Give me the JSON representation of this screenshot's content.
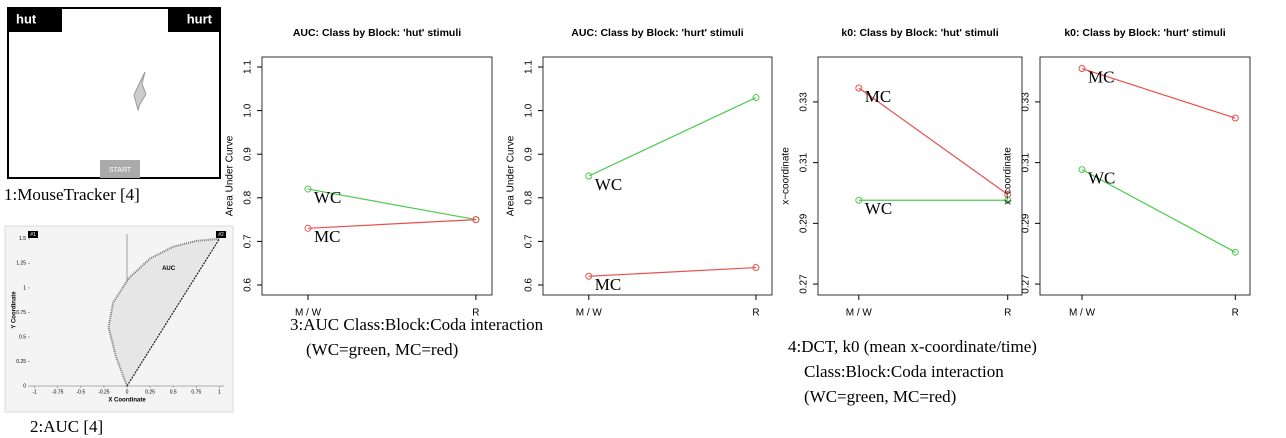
{
  "chart_data": [
    {
      "type": "line",
      "title": "AUC: Class by Block: 'hut' stimuli",
      "y_label": "Area Under Curve",
      "categories": [
        "M / W",
        "R"
      ],
      "series": [
        {
          "name": "WC",
          "color": "#4fc94f",
          "values": [
            0.82,
            0.75
          ]
        },
        {
          "name": "MC",
          "color": "#e8504f",
          "values": [
            0.73,
            0.75
          ]
        }
      ],
      "ylim": [
        0.577,
        1.123
      ],
      "yticks": [
        0.6,
        0.7,
        0.8,
        0.9,
        {
          "value": 1,
          "label": "1.0"
        },
        1.1
      ]
    },
    {
      "type": "line",
      "title": "AUC: Class by Block: 'hurt' stimuli",
      "y_label": "Area Under Curve",
      "categories": [
        "M / W",
        "R"
      ],
      "series": [
        {
          "name": "WC",
          "color": "#4fc94f",
          "values": [
            0.85,
            1.03
          ]
        },
        {
          "name": "MC",
          "color": "#e8504f",
          "values": [
            0.62,
            0.64
          ]
        }
      ],
      "ylim": [
        0.577,
        1.123
      ],
      "yticks": [
        0.6,
        0.7,
        0.8,
        0.9,
        {
          "value": 1,
          "label": "1.0"
        },
        1.1
      ]
    },
    {
      "type": "line",
      "title": "k0: Class by Block: 'hut' stimuli",
      "y_label": "x−coordinate",
      "categories": [
        "M / W",
        "R"
      ],
      "series": [
        {
          "name": "MC",
          "color": "#e8504f",
          "values": [
            0.3346,
            0.2995
          ]
        },
        {
          "name": "WC",
          "color": "#4fc94f",
          "values": [
            0.2976,
            0.2976
          ]
        }
      ],
      "ylim": [
        0.2664,
        0.3448
      ],
      "yticks": [
        0.27,
        0.29,
        0.31,
        0.33
      ]
    },
    {
      "type": "line",
      "title": "k0: Class by Block: 'hurt' stimuli",
      "y_label": "x−coordinate",
      "categories": [
        "M / W",
        "R"
      ],
      "series": [
        {
          "name": "MC",
          "color": "#e8504f",
          "values": [
            0.341,
            0.3247
          ]
        },
        {
          "name": "WC",
          "color": "#4fc94f",
          "values": [
            0.3077,
            0.2805
          ]
        }
      ],
      "ylim": [
        0.2664,
        0.3448
      ],
      "yticks": [
        0.27,
        0.29,
        0.31,
        0.33
      ]
    },
    {
      "type": "trajectory",
      "x_label": "X Coordinate",
      "y_label": "Y Coordinate",
      "annotation": "AUC",
      "start_label": "#1",
      "end_label": "#2",
      "x": [
        0,
        -0.12,
        -0.2,
        -0.15,
        0.02,
        0.25,
        0.5,
        0.75,
        1
      ],
      "y": [
        0,
        0.3,
        0.6,
        0.85,
        1.1,
        1.3,
        1.42,
        1.48,
        1.5
      ],
      "xlim": [
        -1.05,
        1.05
      ],
      "ylim": [
        0,
        1.55
      ],
      "xticks": [
        -1,
        -0.75,
        -0.5,
        -0.25,
        0,
        0.25,
        0.5,
        0.75,
        1
      ],
      "yticks": [
        0,
        0.25,
        0.5,
        0.75,
        1,
        1.25,
        1.5
      ]
    }
  ],
  "mousetracker": {
    "left_label": "hut",
    "right_label": "hurt",
    "button": "START"
  },
  "captions": [
    "1:MouseTracker [4]",
    "2:AUC [4]",
    "3:AUC Class:Block:Coda interaction",
    "(WC=green, MC=red)",
    "4:DCT, k0 (mean x-coordinate/time)",
    "Class:Block:Coda interaction",
    "(WC=green, MC=red)"
  ]
}
